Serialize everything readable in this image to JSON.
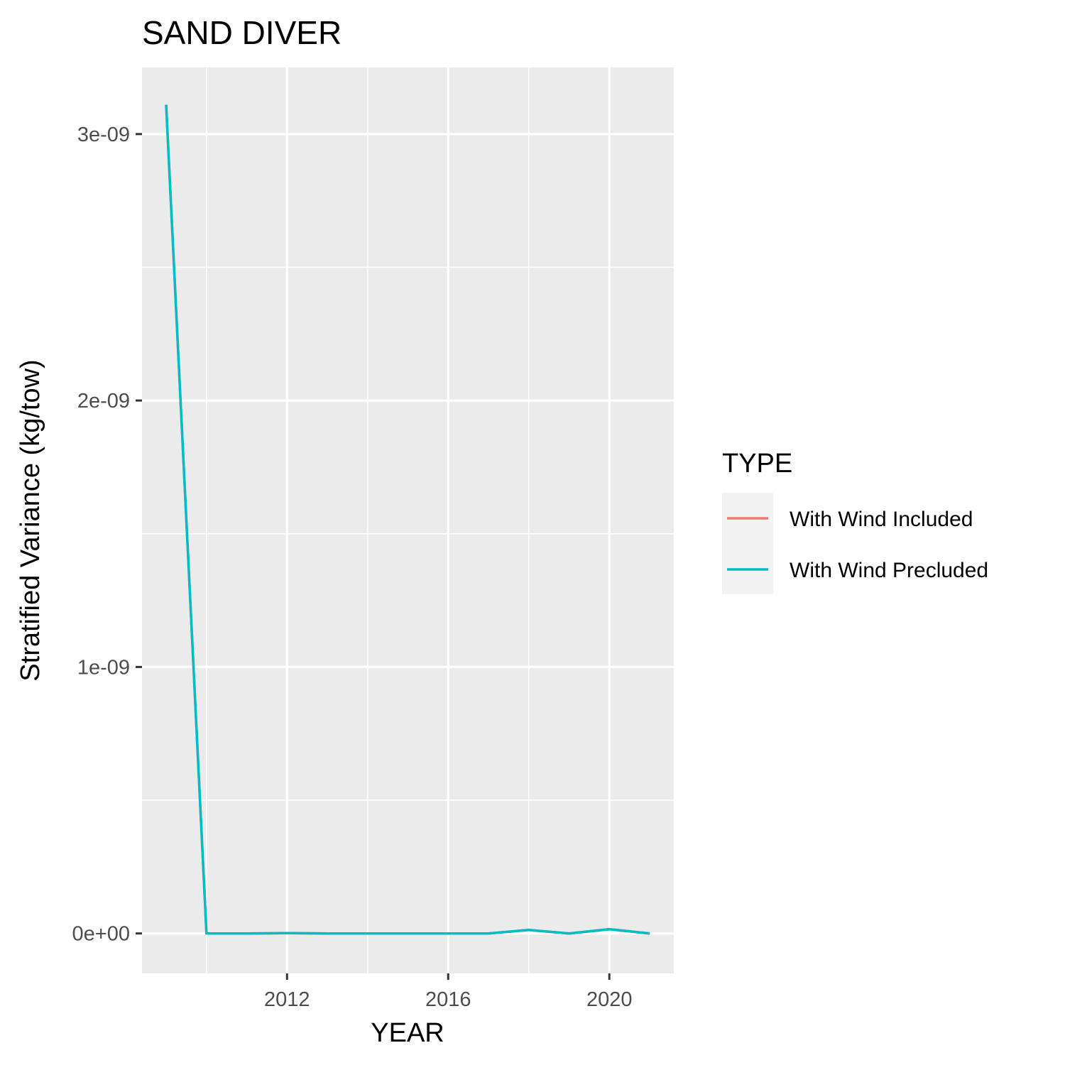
{
  "chart_data": {
    "type": "line",
    "title": "SAND DIVER",
    "xlabel": "YEAR",
    "ylabel": "Stratified Variance (kg/tow)",
    "xlim": [
      2008.4,
      2021.6
    ],
    "ylim": [
      -1.5e-10,
      3.25e-09
    ],
    "x_ticks": [
      2012,
      2016,
      2020
    ],
    "x_tick_labels": [
      "2012",
      "2016",
      "2020"
    ],
    "x_minor": [
      2010,
      2014,
      2018
    ],
    "y_ticks": [
      0,
      1e-09,
      2e-09,
      3e-09
    ],
    "y_tick_labels": [
      "0e+00",
      "1e-09",
      "2e-09",
      "3e-09"
    ],
    "y_minor": [
      5e-10,
      1.5e-09,
      2.5e-09
    ],
    "grid": true,
    "panel_color": "#ebebeb",
    "legend": {
      "title": "TYPE",
      "position": "right",
      "entries": [
        {
          "label": "With Wind Included",
          "color": "#f8766d"
        },
        {
          "label": "With Wind Precluded",
          "color": "#00bfc4"
        }
      ]
    },
    "series": [
      {
        "name": "With Wind Included",
        "color": "#f8766d",
        "x": [
          2009,
          2010,
          2011,
          2012,
          2013,
          2014,
          2015,
          2016,
          2017,
          2018,
          2019,
          2020,
          2021
        ],
        "y": [
          3.11e-09,
          0,
          0,
          1e-12,
          0,
          0,
          0,
          0,
          0,
          1.3e-11,
          0,
          1.6e-11,
          0
        ]
      },
      {
        "name": "With Wind Precluded",
        "color": "#00bfc4",
        "x": [
          2009,
          2010,
          2011,
          2012,
          2013,
          2014,
          2015,
          2016,
          2017,
          2018,
          2019,
          2020,
          2021
        ],
        "y": [
          3.11e-09,
          0,
          0,
          1e-12,
          0,
          0,
          0,
          0,
          0,
          1.3e-11,
          0,
          1.6e-11,
          0
        ]
      }
    ]
  }
}
